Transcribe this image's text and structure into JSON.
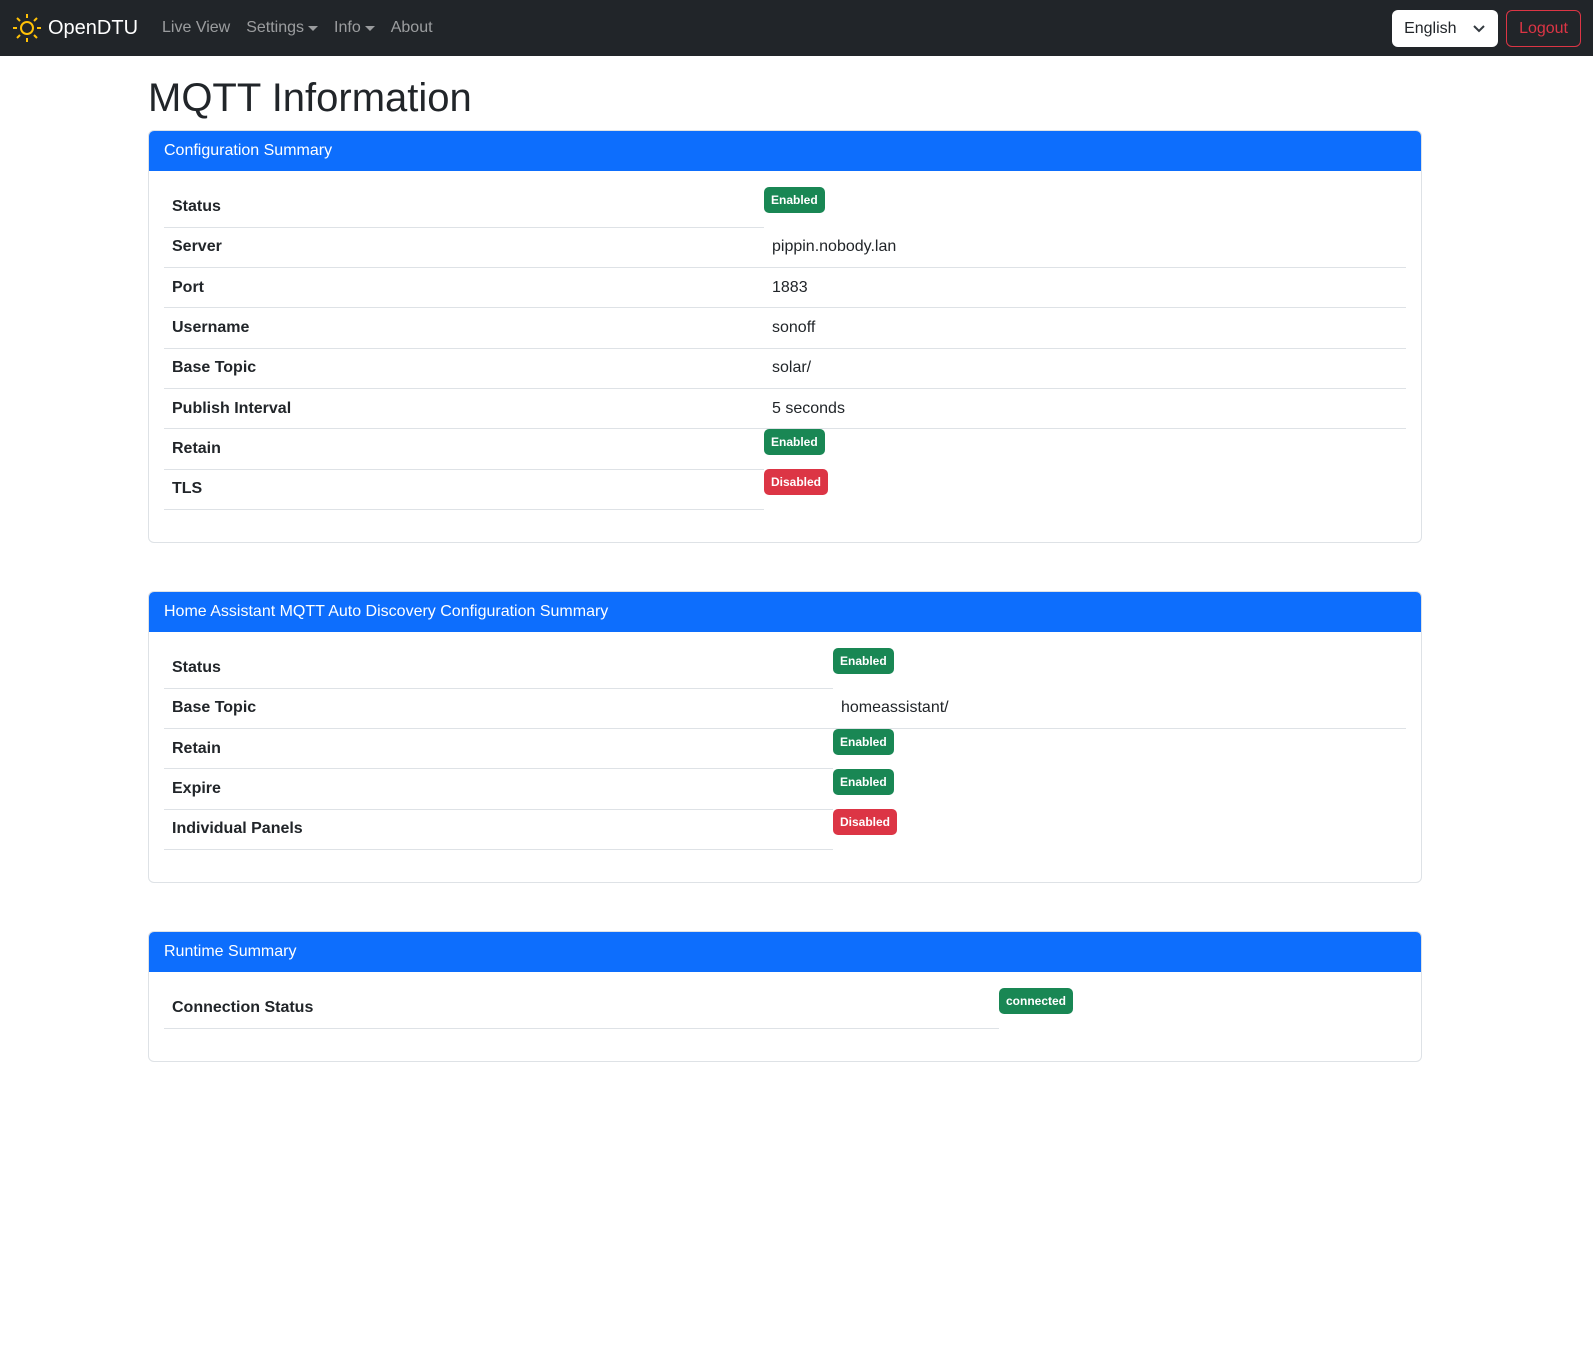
{
  "nav": {
    "brand": "OpenDTU",
    "links": [
      "Live View",
      "Settings",
      "Info",
      "About"
    ],
    "language": "English",
    "logout": "Logout"
  },
  "page_title": "MQTT Information",
  "colors": {
    "accent": "#0d6efd",
    "success": "#198754",
    "danger": "#dc3545"
  },
  "config": {
    "title": "Configuration Summary",
    "rows": [
      {
        "label": "Status",
        "badge": "Enabled",
        "ok": true
      },
      {
        "label": "Server",
        "value": "pippin.nobody.lan"
      },
      {
        "label": "Port",
        "value": "1883"
      },
      {
        "label": "Username",
        "value": "sonoff"
      },
      {
        "label": "Base Topic",
        "value": "solar/"
      },
      {
        "label": "Publish Interval",
        "value": "5 seconds"
      },
      {
        "label": "Retain",
        "badge": "Enabled",
        "ok": true
      },
      {
        "label": "TLS",
        "badge": "Disabled",
        "ok": false
      }
    ]
  },
  "ha": {
    "title": "Home Assistant MQTT Auto Discovery Configuration Summary",
    "rows": [
      {
        "label": "Status",
        "badge": "Enabled",
        "ok": true
      },
      {
        "label": "Base Topic",
        "value": "homeassistant/"
      },
      {
        "label": "Retain",
        "badge": "Enabled",
        "ok": true
      },
      {
        "label": "Expire",
        "badge": "Enabled",
        "ok": true
      },
      {
        "label": "Individual Panels",
        "badge": "Disabled",
        "ok": false
      }
    ]
  },
  "runtime": {
    "title": "Runtime Summary",
    "rows": [
      {
        "label": "Connection Status",
        "badge": "connected",
        "ok": true
      }
    ]
  }
}
